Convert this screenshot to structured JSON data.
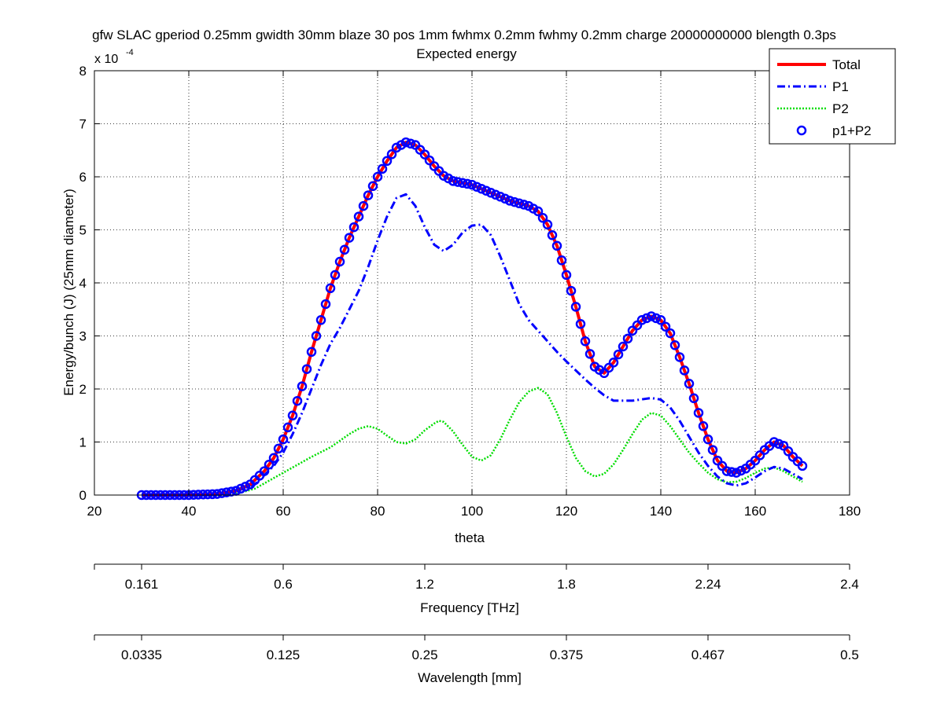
{
  "chart_data": {
    "type": "line",
    "title_line1": "gfw SLAC gperiod 0.25mm gwidth 30mm blaze 30 pos 1mm fwhmx 0.2mm fwhmy 0.2mm charge 20000000000 blength 0.3ps",
    "title_line2": "Expected energy",
    "xlabel": "theta",
    "ylabel": "Energy/bunch (J) (25mm diameter)",
    "y_exponent_label": "x 10",
    "y_exponent_power": "-4",
    "xlim": [
      20,
      180
    ],
    "ylim": [
      0,
      8
    ],
    "y_scale": 0.0001,
    "xticks": [
      20,
      40,
      60,
      80,
      100,
      120,
      140,
      160,
      180
    ],
    "yticks": [
      0,
      1,
      2,
      3,
      4,
      5,
      6,
      7,
      8
    ],
    "grid": true,
    "legend_position": "top-right",
    "series": [
      {
        "name": "Total",
        "color": "#ff0000",
        "style": "solid",
        "points": [
          [
            30,
            0
          ],
          [
            40,
            0
          ],
          [
            46,
            0.02
          ],
          [
            50,
            0.08
          ],
          [
            53,
            0.2
          ],
          [
            56,
            0.45
          ],
          [
            58,
            0.7
          ],
          [
            60,
            1.05
          ],
          [
            62,
            1.5
          ],
          [
            64,
            2.05
          ],
          [
            66,
            2.7
          ],
          [
            68,
            3.3
          ],
          [
            70,
            3.9
          ],
          [
            72,
            4.4
          ],
          [
            74,
            4.85
          ],
          [
            76,
            5.25
          ],
          [
            78,
            5.65
          ],
          [
            80,
            6.0
          ],
          [
            82,
            6.3
          ],
          [
            84,
            6.55
          ],
          [
            86,
            6.65
          ],
          [
            88,
            6.6
          ],
          [
            90,
            6.42
          ],
          [
            92,
            6.2
          ],
          [
            94,
            6.02
          ],
          [
            96,
            5.92
          ],
          [
            100,
            5.85
          ],
          [
            104,
            5.7
          ],
          [
            108,
            5.55
          ],
          [
            112,
            5.45
          ],
          [
            114,
            5.35
          ],
          [
            116,
            5.1
          ],
          [
            118,
            4.7
          ],
          [
            120,
            4.15
          ],
          [
            122,
            3.55
          ],
          [
            124,
            2.9
          ],
          [
            126,
            2.42
          ],
          [
            128,
            2.3
          ],
          [
            130,
            2.5
          ],
          [
            132,
            2.8
          ],
          [
            134,
            3.1
          ],
          [
            136,
            3.3
          ],
          [
            138,
            3.37
          ],
          [
            140,
            3.3
          ],
          [
            142,
            3.05
          ],
          [
            144,
            2.6
          ],
          [
            146,
            2.1
          ],
          [
            148,
            1.55
          ],
          [
            150,
            1.05
          ],
          [
            152,
            0.65
          ],
          [
            154,
            0.45
          ],
          [
            156,
            0.42
          ],
          [
            158,
            0.5
          ],
          [
            160,
            0.65
          ],
          [
            162,
            0.85
          ],
          [
            164,
            1.0
          ],
          [
            166,
            0.93
          ],
          [
            168,
            0.72
          ],
          [
            170,
            0.55
          ]
        ]
      },
      {
        "name": "P1",
        "color": "#0000ff",
        "style": "dashdot",
        "points": [
          [
            30,
            0
          ],
          [
            40,
            0
          ],
          [
            46,
            0.02
          ],
          [
            50,
            0.07
          ],
          [
            54,
            0.2
          ],
          [
            58,
            0.55
          ],
          [
            60,
            0.8
          ],
          [
            62,
            1.15
          ],
          [
            64,
            1.55
          ],
          [
            66,
            2.0
          ],
          [
            68,
            2.45
          ],
          [
            70,
            2.85
          ],
          [
            72,
            3.15
          ],
          [
            74,
            3.5
          ],
          [
            76,
            3.85
          ],
          [
            78,
            4.3
          ],
          [
            80,
            4.8
          ],
          [
            82,
            5.25
          ],
          [
            84,
            5.6
          ],
          [
            86,
            5.67
          ],
          [
            88,
            5.45
          ],
          [
            90,
            5.05
          ],
          [
            92,
            4.72
          ],
          [
            94,
            4.6
          ],
          [
            96,
            4.72
          ],
          [
            98,
            4.95
          ],
          [
            100,
            5.08
          ],
          [
            102,
            5.1
          ],
          [
            104,
            4.9
          ],
          [
            106,
            4.5
          ],
          [
            108,
            4.05
          ],
          [
            110,
            3.6
          ],
          [
            112,
            3.3
          ],
          [
            114,
            3.1
          ],
          [
            116,
            2.9
          ],
          [
            118,
            2.7
          ],
          [
            120,
            2.52
          ],
          [
            122,
            2.35
          ],
          [
            124,
            2.18
          ],
          [
            126,
            2.02
          ],
          [
            128,
            1.88
          ],
          [
            130,
            1.78
          ],
          [
            134,
            1.78
          ],
          [
            138,
            1.83
          ],
          [
            140,
            1.8
          ],
          [
            142,
            1.65
          ],
          [
            144,
            1.4
          ],
          [
            146,
            1.1
          ],
          [
            148,
            0.8
          ],
          [
            150,
            0.55
          ],
          [
            152,
            0.35
          ],
          [
            154,
            0.22
          ],
          [
            156,
            0.18
          ],
          [
            158,
            0.22
          ],
          [
            160,
            0.33
          ],
          [
            162,
            0.45
          ],
          [
            164,
            0.53
          ],
          [
            166,
            0.5
          ],
          [
            168,
            0.4
          ],
          [
            170,
            0.3
          ]
        ]
      },
      {
        "name": "P2",
        "color": "#00dd00",
        "style": "dotted",
        "points": [
          [
            30,
            0
          ],
          [
            46,
            0
          ],
          [
            50,
            0.02
          ],
          [
            54,
            0.12
          ],
          [
            58,
            0.32
          ],
          [
            62,
            0.52
          ],
          [
            66,
            0.72
          ],
          [
            70,
            0.9
          ],
          [
            74,
            1.15
          ],
          [
            76,
            1.25
          ],
          [
            78,
            1.3
          ],
          [
            80,
            1.25
          ],
          [
            82,
            1.12
          ],
          [
            84,
            1.0
          ],
          [
            86,
            0.97
          ],
          [
            88,
            1.05
          ],
          [
            90,
            1.22
          ],
          [
            92,
            1.35
          ],
          [
            93,
            1.4
          ],
          [
            94,
            1.38
          ],
          [
            96,
            1.2
          ],
          [
            98,
            0.95
          ],
          [
            100,
            0.72
          ],
          [
            102,
            0.65
          ],
          [
            104,
            0.75
          ],
          [
            106,
            1.05
          ],
          [
            108,
            1.42
          ],
          [
            110,
            1.75
          ],
          [
            112,
            1.95
          ],
          [
            114,
            2.02
          ],
          [
            116,
            1.9
          ],
          [
            118,
            1.55
          ],
          [
            120,
            1.1
          ],
          [
            122,
            0.7
          ],
          [
            124,
            0.45
          ],
          [
            126,
            0.35
          ],
          [
            128,
            0.4
          ],
          [
            130,
            0.58
          ],
          [
            132,
            0.85
          ],
          [
            134,
            1.15
          ],
          [
            136,
            1.42
          ],
          [
            138,
            1.55
          ],
          [
            140,
            1.5
          ],
          [
            142,
            1.3
          ],
          [
            144,
            1.05
          ],
          [
            146,
            0.8
          ],
          [
            148,
            0.6
          ],
          [
            150,
            0.42
          ],
          [
            152,
            0.3
          ],
          [
            154,
            0.24
          ],
          [
            156,
            0.25
          ],
          [
            158,
            0.32
          ],
          [
            160,
            0.42
          ],
          [
            162,
            0.5
          ],
          [
            164,
            0.52
          ],
          [
            166,
            0.45
          ],
          [
            168,
            0.35
          ],
          [
            170,
            0.25
          ]
        ]
      },
      {
        "name": "p1+P2",
        "color": "#0000ff",
        "style": "circles",
        "points": [
          [
            30,
            0
          ],
          [
            40,
            0
          ],
          [
            46,
            0.02
          ],
          [
            50,
            0.08
          ],
          [
            53,
            0.2
          ],
          [
            56,
            0.45
          ],
          [
            58,
            0.7
          ],
          [
            60,
            1.05
          ],
          [
            62,
            1.5
          ],
          [
            64,
            2.05
          ],
          [
            66,
            2.7
          ],
          [
            68,
            3.3
          ],
          [
            70,
            3.9
          ],
          [
            72,
            4.4
          ],
          [
            74,
            4.85
          ],
          [
            76,
            5.25
          ],
          [
            78,
            5.65
          ],
          [
            80,
            6.0
          ],
          [
            82,
            6.3
          ],
          [
            84,
            6.55
          ],
          [
            86,
            6.65
          ],
          [
            88,
            6.6
          ],
          [
            90,
            6.42
          ],
          [
            92,
            6.2
          ],
          [
            94,
            6.02
          ],
          [
            96,
            5.92
          ],
          [
            100,
            5.85
          ],
          [
            104,
            5.7
          ],
          [
            108,
            5.55
          ],
          [
            112,
            5.45
          ],
          [
            114,
            5.35
          ],
          [
            116,
            5.1
          ],
          [
            118,
            4.7
          ],
          [
            120,
            4.15
          ],
          [
            122,
            3.55
          ],
          [
            124,
            2.9
          ],
          [
            126,
            2.42
          ],
          [
            128,
            2.3
          ],
          [
            130,
            2.5
          ],
          [
            132,
            2.8
          ],
          [
            134,
            3.1
          ],
          [
            136,
            3.3
          ],
          [
            138,
            3.37
          ],
          [
            140,
            3.3
          ],
          [
            142,
            3.05
          ],
          [
            144,
            2.6
          ],
          [
            146,
            2.1
          ],
          [
            148,
            1.55
          ],
          [
            150,
            1.05
          ],
          [
            152,
            0.65
          ],
          [
            154,
            0.45
          ],
          [
            156,
            0.42
          ],
          [
            158,
            0.5
          ],
          [
            160,
            0.65
          ],
          [
            162,
            0.85
          ],
          [
            164,
            1.0
          ],
          [
            166,
            0.93
          ],
          [
            168,
            0.72
          ],
          [
            170,
            0.55
          ]
        ]
      }
    ],
    "secondary_axes": [
      {
        "label": "Frequency [THz]",
        "ticks": [
          {
            "theta": 20,
            "label": ""
          },
          {
            "theta": 30,
            "label": "0.161"
          },
          {
            "theta": 60,
            "label": "0.6"
          },
          {
            "theta": 90,
            "label": "1.2"
          },
          {
            "theta": 120,
            "label": "1.8"
          },
          {
            "theta": 150,
            "label": "2.24"
          },
          {
            "theta": 180,
            "label": "2.4"
          }
        ]
      },
      {
        "label": "Wavelength [mm]",
        "ticks": [
          {
            "theta": 20,
            "label": ""
          },
          {
            "theta": 30,
            "label": "0.0335"
          },
          {
            "theta": 60,
            "label": "0.125"
          },
          {
            "theta": 90,
            "label": "0.25"
          },
          {
            "theta": 120,
            "label": "0.375"
          },
          {
            "theta": 150,
            "label": "0.467"
          },
          {
            "theta": 180,
            "label": "0.5"
          }
        ]
      }
    ]
  }
}
